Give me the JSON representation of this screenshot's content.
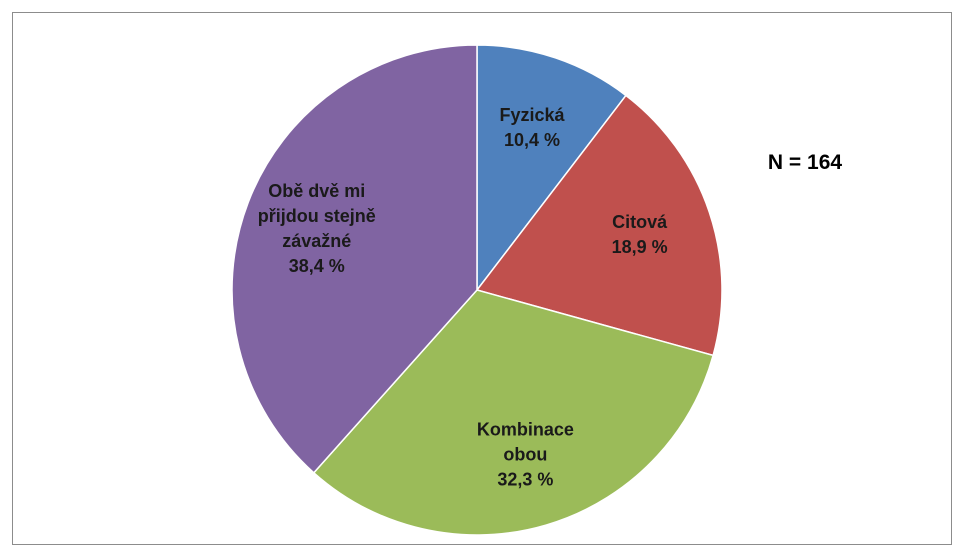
{
  "chart_data": {
    "type": "pie",
    "categories": [
      "Fyzická",
      "Citová",
      "Kombinace obou",
      "Obě dvě mi přijdou stejně závažné"
    ],
    "values": [
      10.4,
      18.9,
      32.3,
      38.4
    ],
    "value_labels": [
      "10,4 %",
      "18,9 %",
      "32,3 %",
      "38,4 %"
    ],
    "colors": [
      "#4f81bd",
      "#c0504d",
      "#9bbb59",
      "#8064a2"
    ],
    "annotation": "N = 164"
  }
}
